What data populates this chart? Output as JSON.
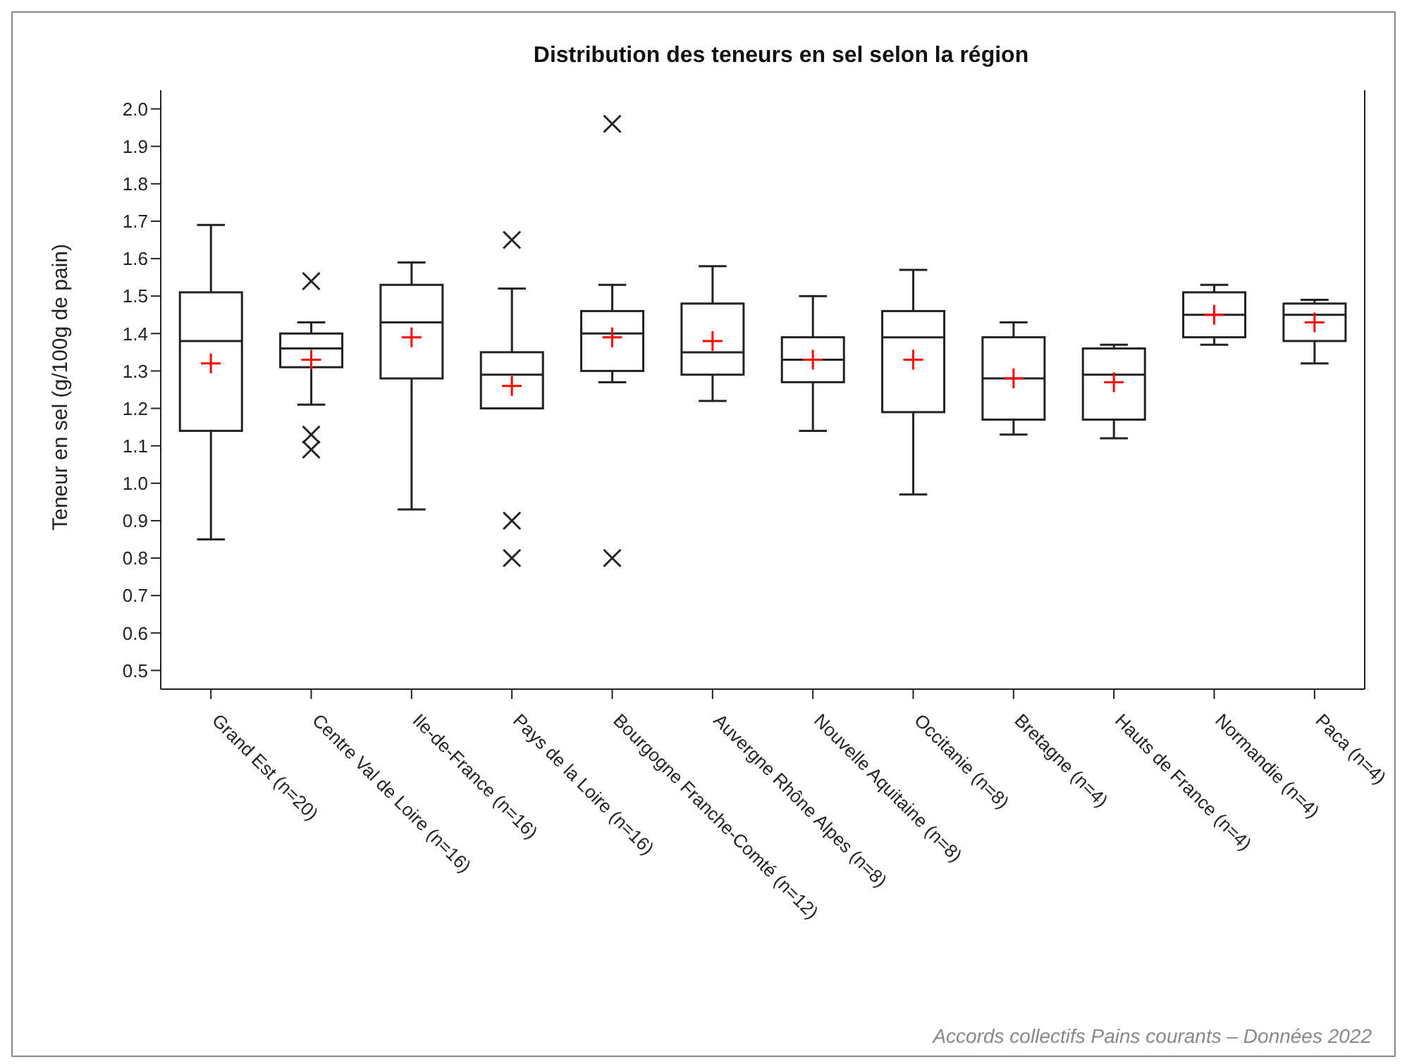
{
  "chart_data": {
    "type": "box",
    "title": "Distribution des teneurs en sel selon la région",
    "ylabel": "Teneur en sel (g/100g de pain)",
    "categories": [
      "Grand Est (n=20)",
      "Centre Val de Loire (n=16)",
      "Ile-de-France (n=16)",
      "Pays de la Loire (n=16)",
      "Bourgogne Franche-Comté (n=12)",
      "Auvergne Rhône Alpes (n=8)",
      "Nouvelle Aquitaine (n=8)",
      "Occitanie (n=8)",
      "Bretagne (n=4)",
      "Hauts de France (n=4)",
      "Normandie (n=4)",
      "Paca (n=4)"
    ],
    "boxes": [
      {
        "low": 0.85,
        "q1": 1.14,
        "median": 1.38,
        "q3": 1.51,
        "high": 1.69,
        "mean": 1.32
      },
      {
        "low": 1.21,
        "q1": 1.31,
        "median": 1.36,
        "q3": 1.4,
        "high": 1.43,
        "mean": 1.33,
        "outliers": [
          1.54,
          1.13,
          1.09
        ]
      },
      {
        "low": 0.93,
        "q1": 1.28,
        "median": 1.43,
        "q3": 1.53,
        "high": 1.59,
        "mean": 1.39
      },
      {
        "low": 1.2,
        "q1": 1.2,
        "median": 1.29,
        "q3": 1.35,
        "high": 1.52,
        "mean": 1.26,
        "outliers": [
          1.65,
          0.9,
          0.8
        ]
      },
      {
        "low": 1.27,
        "q1": 1.3,
        "median": 1.4,
        "q3": 1.46,
        "high": 1.53,
        "mean": 1.39,
        "outliers": [
          1.96,
          0.8
        ]
      },
      {
        "low": 1.22,
        "q1": 1.29,
        "median": 1.35,
        "q3": 1.48,
        "high": 1.58,
        "mean": 1.38
      },
      {
        "low": 1.14,
        "q1": 1.27,
        "median": 1.33,
        "q3": 1.39,
        "high": 1.5,
        "mean": 1.33
      },
      {
        "low": 0.97,
        "q1": 1.19,
        "median": 1.39,
        "q3": 1.46,
        "high": 1.57,
        "mean": 1.33
      },
      {
        "low": 1.13,
        "q1": 1.17,
        "median": 1.28,
        "q3": 1.39,
        "high": 1.43,
        "mean": 1.28
      },
      {
        "low": 1.12,
        "q1": 1.17,
        "median": 1.29,
        "q3": 1.36,
        "high": 1.37,
        "mean": 1.27
      },
      {
        "low": 1.37,
        "q1": 1.39,
        "median": 1.45,
        "q3": 1.51,
        "high": 1.53,
        "mean": 1.45
      },
      {
        "low": 1.32,
        "q1": 1.38,
        "median": 1.45,
        "q3": 1.48,
        "high": 1.49,
        "mean": 1.43
      }
    ],
    "ylim": [
      0.45,
      2.05
    ],
    "yticks": [
      0.5,
      0.6,
      0.7,
      0.8,
      0.9,
      {
        "value": 1,
        "label": "1.0"
      },
      1.1,
      1.2,
      1.3,
      1.4,
      1.5,
      1.6,
      1.7,
      1.8,
      1.9,
      {
        "value": 2,
        "label": "2.0"
      }
    ],
    "marker": "cross",
    "annotations": [
      "Accords collectifs Pains courants – Données 2022"
    ]
  }
}
